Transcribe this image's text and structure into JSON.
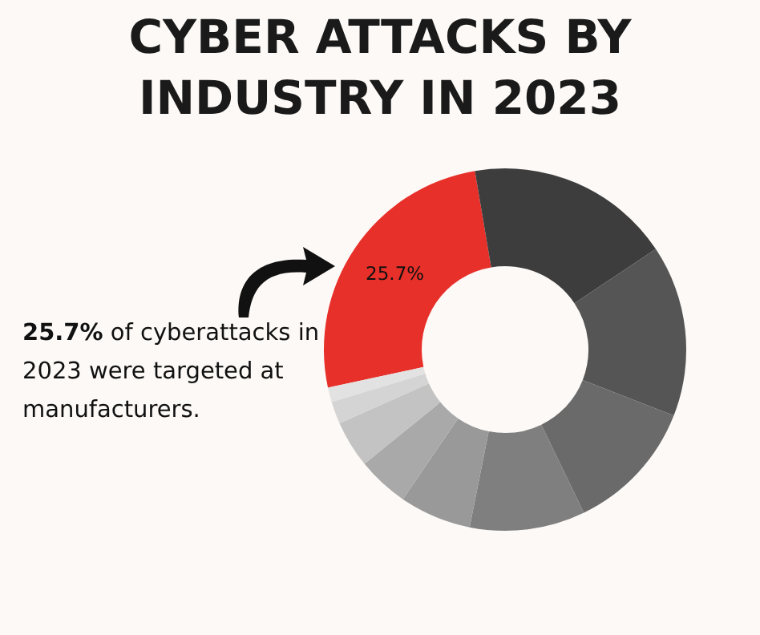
{
  "chart_data": {
    "type": "donut",
    "title": "CYBER ATTACKS BY INDUSTRY IN 2023",
    "categories": [
      null,
      null,
      null,
      null,
      null,
      null,
      null,
      null,
      null,
      null
    ],
    "values": [
      25.7,
      18.3,
      15.3,
      11.9,
      10.3,
      6.4,
      4.6,
      4.2,
      2.0,
      1.3
    ],
    "colors": [
      "#e8302a",
      "#3d3d3d",
      "#555555",
      "#6a6a6a",
      "#7f7f7f",
      "#999999",
      "#a9a9a9",
      "#c3c3c3",
      "#d4d4d4",
      "#e2e2e2"
    ],
    "value_labels": [
      "25.7%",
      null,
      null,
      null,
      null,
      null,
      null,
      null,
      null,
      null
    ],
    "annotations": [
      "25.7% of cyberattacks in 2023 were targeted at manufacturers."
    ]
  }
}
